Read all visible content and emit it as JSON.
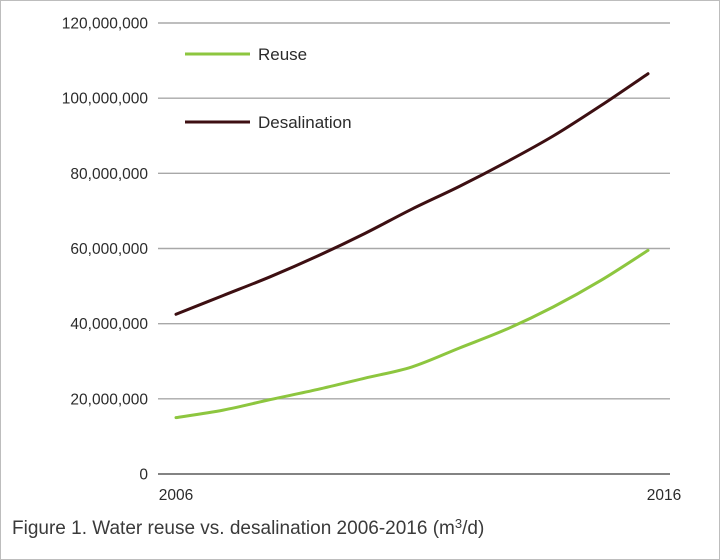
{
  "chart_data": {
    "type": "line",
    "x": [
      2006,
      2007,
      2008,
      2009,
      2010,
      2011,
      2012,
      2013,
      2014,
      2015,
      2016
    ],
    "series": [
      {
        "name": "Reuse",
        "color": "#8dc63f",
        "values": [
          15000000,
          17000000,
          19800000,
          22500000,
          25500000,
          28500000,
          33500000,
          38500000,
          44500000,
          51500000,
          59500000
        ]
      },
      {
        "name": "Desalination",
        "color": "#3d0f12",
        "values": [
          42500000,
          47500000,
          52500000,
          58000000,
          64000000,
          70500000,
          76500000,
          83000000,
          90000000,
          98000000,
          106500000
        ]
      }
    ],
    "x_tick_labels": [
      "2006",
      "2016"
    ],
    "y_ticks": [
      0,
      20000000,
      40000000,
      60000000,
      80000000,
      100000000,
      120000000
    ],
    "y_tick_labels": [
      "0",
      "20,000,000",
      "40,000,000",
      "60,000,000",
      "80,000,000",
      "100,000,000",
      "120,000,000"
    ],
    "ylim": [
      0,
      120000000
    ],
    "xlim": [
      2006,
      2016
    ],
    "grid": "horizontal",
    "legend_position": "top-left",
    "title": "",
    "xlabel": "",
    "ylabel": ""
  },
  "caption": {
    "text": "Figure 1. Water reuse vs. desalination 2006-2016 (m",
    "superscript": "3",
    "suffix": "/d)"
  },
  "colors": {
    "grid": "#a8a8a8",
    "axis": "#5a5a5a",
    "text": "#2b2b2b"
  }
}
